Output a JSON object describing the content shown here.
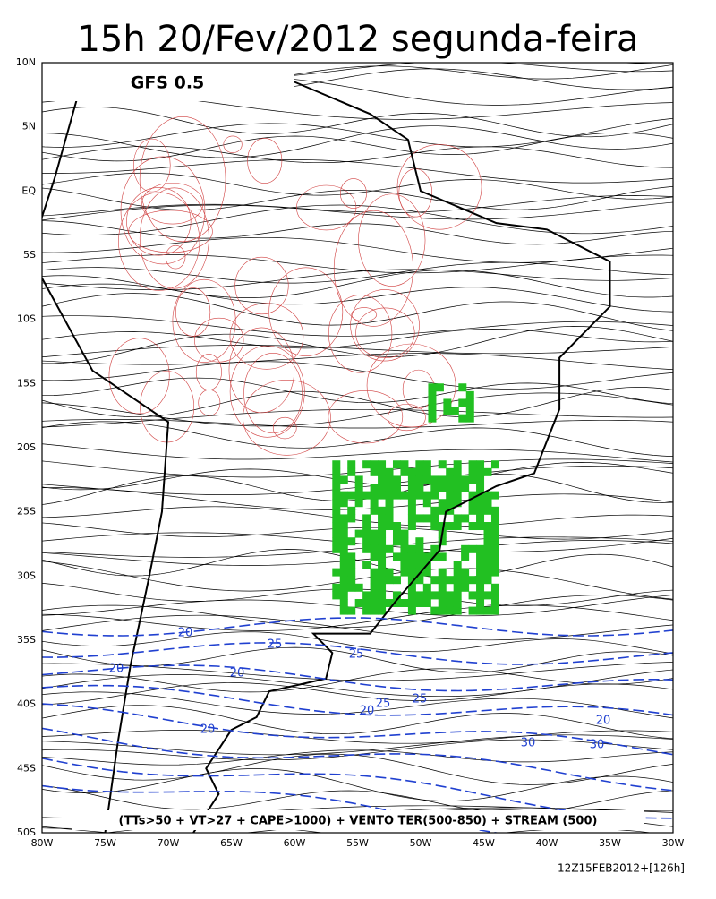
{
  "header": {
    "title": "15h 20/Fev/2012 segunda-feira",
    "model": "GFS 0.5"
  },
  "axes": {
    "lat_labels": [
      "10N",
      "5N",
      "EQ",
      "5S",
      "10S",
      "15S",
      "20S",
      "25S",
      "30S",
      "35S",
      "40S",
      "45S",
      "50S"
    ],
    "lon_labels": [
      "80W",
      "75W",
      "70W",
      "65W",
      "60W",
      "55W",
      "50W",
      "45W",
      "40W",
      "35W",
      "30W"
    ]
  },
  "contour_labels": [
    "20",
    "20",
    "20",
    "25",
    "25",
    "20",
    "20",
    "25",
    "25",
    "20",
    "30",
    "30"
  ],
  "legend": "(TTs>50 + VT>27 + CAPE>1000) + VENTO TER(500-850) + STREAM (500)",
  "footer": "12Z15FEB2012+[126h]"
}
